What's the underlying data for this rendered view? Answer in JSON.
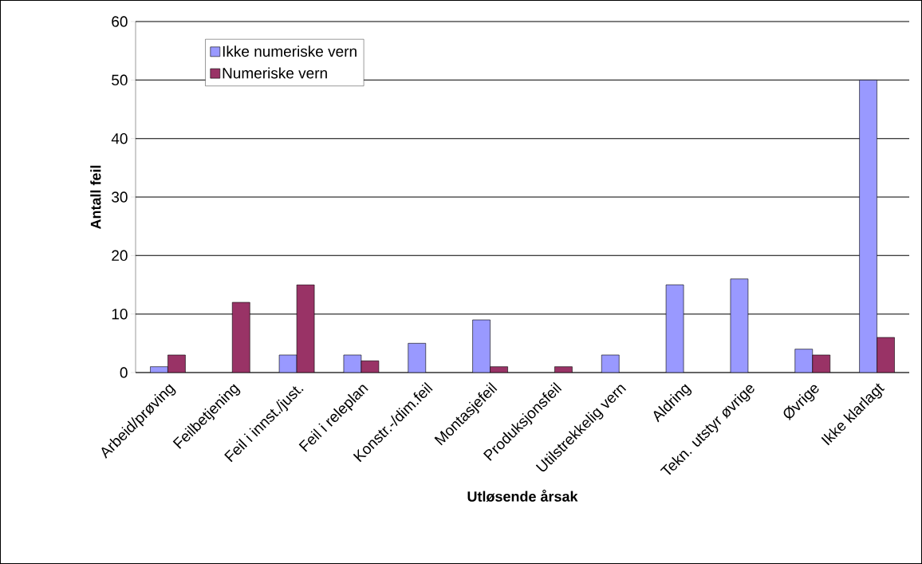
{
  "chart_data": {
    "type": "bar",
    "xlabel": "Utløsende årsak",
    "ylabel": "Antall feil",
    "categories": [
      "Arbeid/prøving",
      "Feilbetjening",
      "Feil i innst./just.",
      "Feil i releplan",
      "Konstr.-/dim.feil",
      "Montasjefeil",
      "Produksjonsfeil",
      "Utilstrekkelig vern",
      "Aldring",
      "Tekn. utstyr øvrige",
      "Øvrige",
      "Ikke klarlagt"
    ],
    "series": [
      {
        "name": "Ikke numeriske vern",
        "color": "#9999ff",
        "values": [
          1,
          null,
          3,
          3,
          5,
          9,
          null,
          3,
          15,
          16,
          4,
          50
        ]
      },
      {
        "name": "Numeriske vern",
        "color": "#993366",
        "values": [
          3,
          12,
          15,
          2,
          null,
          1,
          1,
          null,
          null,
          null,
          3,
          6
        ]
      }
    ],
    "ylim": [
      0,
      60
    ],
    "yticks": [
      0,
      10,
      20,
      30,
      40,
      50,
      60
    ],
    "grid": "y",
    "legend": "top left"
  }
}
